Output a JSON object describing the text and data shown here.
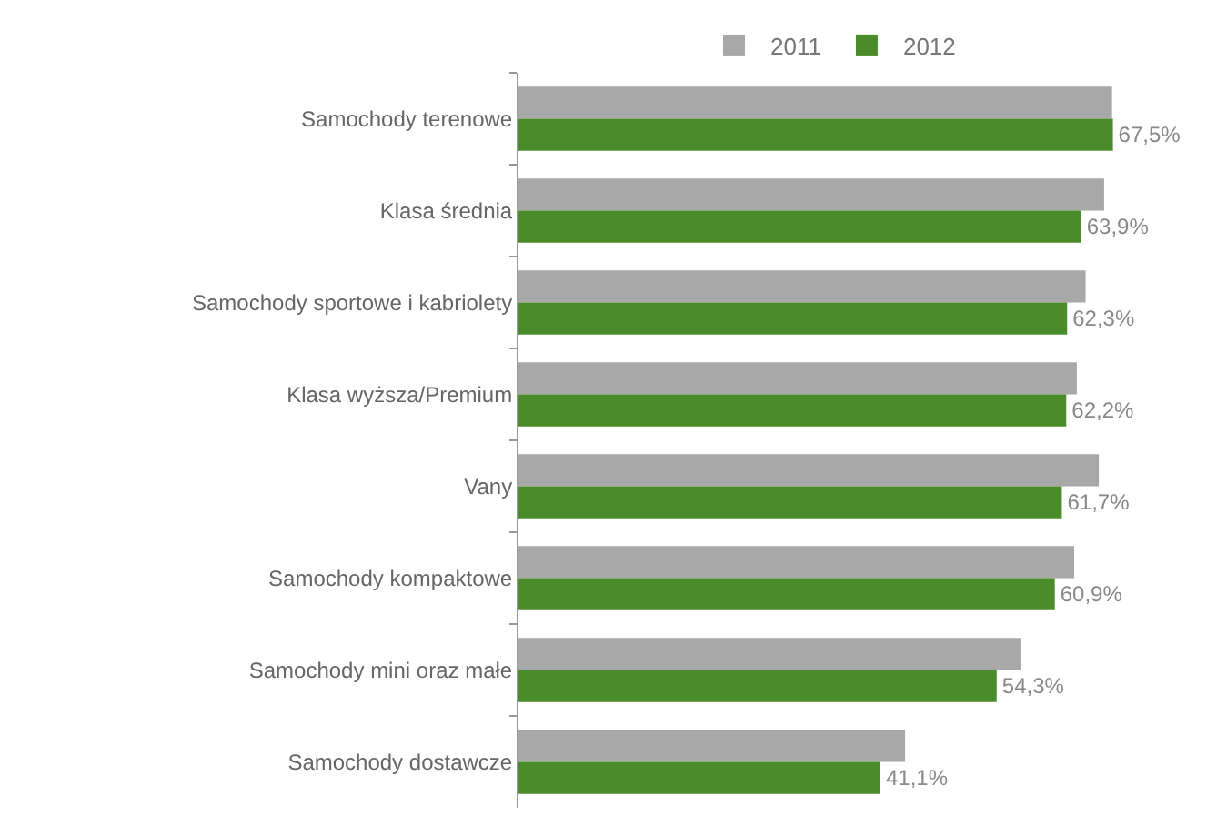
{
  "chart_data": {
    "type": "bar",
    "orientation": "horizontal",
    "legend": "top",
    "categories": [
      "Samochody terenowe",
      "Klasa średnia",
      "Samochody sportowe i kabriolety",
      "Klasa wyższa/Premium",
      "Vany",
      "Samochody kompaktowe",
      "Samochody mini oraz małe",
      "Samochody dostawcze"
    ],
    "series": [
      {
        "name": "2011",
        "color": "#a8a8a8",
        "values": [
          67.4,
          66.5,
          64.4,
          63.4,
          65.9,
          63.1,
          57.0,
          43.9
        ]
      },
      {
        "name": "2012",
        "color": "#4a8c2a",
        "values": [
          67.5,
          63.9,
          62.3,
          62.2,
          61.7,
          60.9,
          54.3,
          41.1
        ],
        "value_labels": [
          "67,5%",
          "63,9%",
          "62,3%",
          "62,2%",
          "61,7%",
          "60,9%",
          "54,3%",
          "41,1%"
        ]
      }
    ]
  }
}
